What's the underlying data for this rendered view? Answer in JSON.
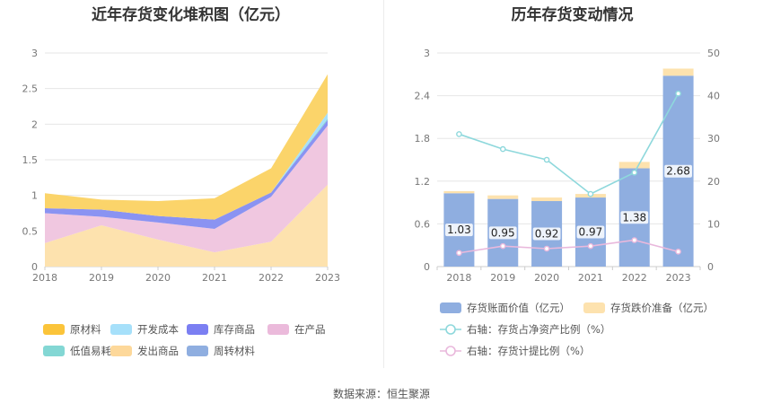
{
  "left_title": "近年存货变化堆积图（亿元）",
  "right_title": "历年存货变动情况",
  "footer": "数据来源：恒生聚源",
  "chart_data": [
    {
      "type": "area",
      "stacked": true,
      "title": "近年存货变化堆积图（亿元）",
      "x": [
        "2018",
        "2019",
        "2020",
        "2021",
        "2022",
        "2023"
      ],
      "ylim": [
        0,
        3
      ],
      "yticks": [
        "0",
        "0.5",
        "1",
        "1.5",
        "2",
        "2.5",
        "3"
      ],
      "grid": true,
      "legend_position": "bottom",
      "series": [
        {
          "name": "发出商品",
          "color": "#fde2ae",
          "values": [
            0.33,
            0.58,
            0.38,
            0.2,
            0.35,
            1.15
          ]
        },
        {
          "name": "在产品",
          "color": "#f0c7e0",
          "values": [
            0.42,
            0.12,
            0.24,
            0.33,
            0.63,
            0.83
          ]
        },
        {
          "name": "库存商品",
          "color": "#8a93f2",
          "values": [
            0.07,
            0.1,
            0.09,
            0.13,
            0.06,
            0.08
          ]
        },
        {
          "name": "周转材料",
          "color": "#8faee0",
          "values": [
            0.0,
            0.0,
            0.0,
            0.0,
            0.0,
            0.0
          ]
        },
        {
          "name": "低值易耗品",
          "color": "#83d7d4",
          "values": [
            0.0,
            0.0,
            0.0,
            0.0,
            0.0,
            0.02
          ]
        },
        {
          "name": "开发成本",
          "color": "#a6e0fa",
          "values": [
            0.0,
            0.0,
            0.0,
            0.0,
            0.0,
            0.08
          ]
        },
        {
          "name": "原材料",
          "color": "#fbd46a",
          "values": [
            0.21,
            0.14,
            0.21,
            0.3,
            0.34,
            0.54
          ]
        }
      ],
      "legend": [
        {
          "name": "原材料",
          "color": "#fbc43a"
        },
        {
          "name": "开发成本",
          "color": "#a6e0fa"
        },
        {
          "name": "库存商品",
          "color": "#7b7ff2"
        },
        {
          "name": "在产品",
          "color": "#ebbadb"
        },
        {
          "name": "低值易耗品",
          "color": "#83d7d4"
        },
        {
          "name": "发出商品",
          "color": "#fdd89a"
        },
        {
          "name": "周转材料",
          "color": "#8faee0"
        }
      ]
    },
    {
      "type": "bar",
      "stacked": true,
      "title": "历年存货变动情况",
      "categories": [
        "2018",
        "2019",
        "2020",
        "2021",
        "2022",
        "2023"
      ],
      "ylim": [
        0,
        3
      ],
      "yticks": [
        "0",
        "0.6",
        "1.2",
        "1.8",
        "2.4",
        "3"
      ],
      "y2lim": [
        0,
        50
      ],
      "y2ticks": [
        "0",
        "10",
        "20",
        "30",
        "40",
        "50"
      ],
      "grid": true,
      "legend_position": "bottom",
      "series": [
        {
          "name": "存货账面价值（亿元）",
          "color": "#8faee0",
          "values": [
            1.03,
            0.95,
            0.92,
            0.97,
            1.38,
            2.68
          ],
          "labels": [
            "1.03",
            "0.95",
            "0.92",
            "0.97",
            "1.38",
            "2.68"
          ]
        },
        {
          "name": "存货跌价准备（亿元）",
          "color": "#fde2ae",
          "values": [
            0.03,
            0.05,
            0.05,
            0.05,
            0.09,
            0.1
          ]
        }
      ],
      "lines": [
        {
          "name": "右轴：存货占净资产比例（%）",
          "color": "#8ed8dc",
          "axis": "right",
          "values": [
            31,
            27.5,
            25,
            17,
            22,
            40.5
          ]
        },
        {
          "name": "右轴：存货计提比例（%）",
          "color": "#e9b8dc",
          "axis": "right",
          "values": [
            3.2,
            4.8,
            4.2,
            4.8,
            6.2,
            3.5
          ]
        }
      ]
    }
  ]
}
